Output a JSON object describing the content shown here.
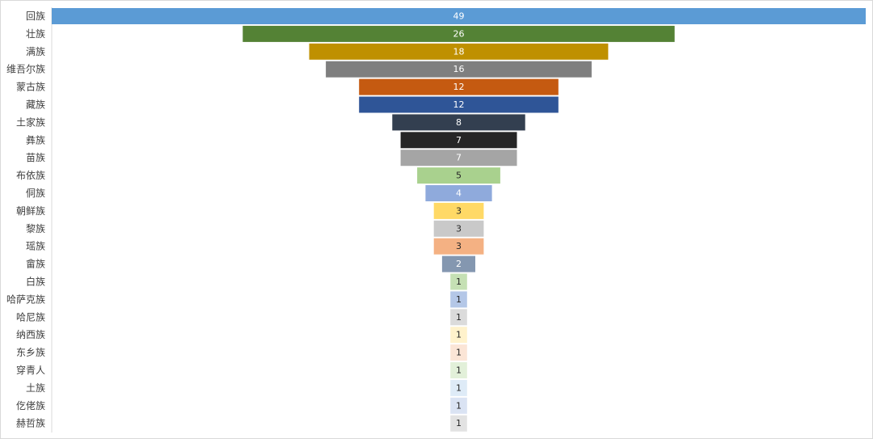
{
  "chart_data": {
    "type": "bar",
    "orientation": "horizontal",
    "style": "funnel",
    "categories": [
      "回族",
      "壮族",
      "满族",
      "维吾尔族",
      "蒙古族",
      "藏族",
      "土家族",
      "彝族",
      "苗族",
      "布依族",
      "侗族",
      "朝鲜族",
      "黎族",
      "瑶族",
      "畲族",
      "白族",
      "哈萨克族",
      "哈尼族",
      "纳西族",
      "东乡族",
      "穿青人",
      "土族",
      "仡佬族",
      "赫哲族"
    ],
    "values": [
      49,
      26,
      18,
      16,
      12,
      12,
      8,
      7,
      7,
      5,
      4,
      3,
      3,
      3,
      2,
      1,
      1,
      1,
      1,
      1,
      1,
      1,
      1,
      1
    ],
    "colors": [
      "#5b9bd5",
      "#548235",
      "#bf9000",
      "#7f7f7f",
      "#c55a11",
      "#2f5597",
      "#333f50",
      "#262626",
      "#a5a5a5",
      "#a9d18e",
      "#8faadc",
      "#ffd966",
      "#c9c9c9",
      "#f4b183",
      "#8497b0",
      "#c5e0b4",
      "#b4c7e7",
      "#dbdbdb",
      "#fff2cc",
      "#fbe5d6",
      "#e2f0d9",
      "#deebf7",
      "#dae3f3",
      "#e2e2e2"
    ],
    "label_colors": [
      "#ffffff",
      "#ffffff",
      "#ffffff",
      "#ffffff",
      "#ffffff",
      "#ffffff",
      "#ffffff",
      "#ffffff",
      "#ffffff",
      "#262626",
      "#ffffff",
      "#262626",
      "#262626",
      "#262626",
      "#ffffff",
      "#262626",
      "#262626",
      "#262626",
      "#262626",
      "#262626",
      "#262626",
      "#262626",
      "#262626",
      "#262626"
    ],
    "data_labels": true,
    "grid": false,
    "legend": "none"
  }
}
